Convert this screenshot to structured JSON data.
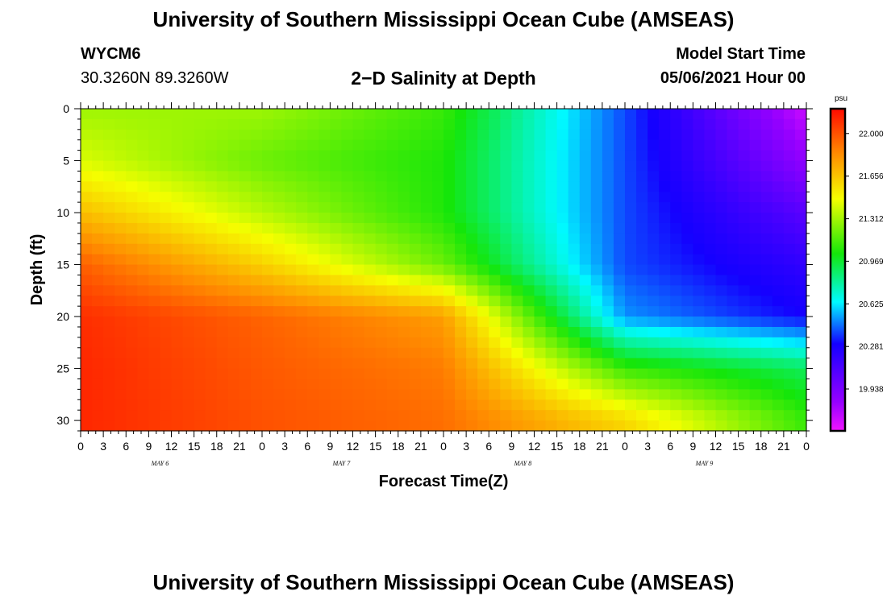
{
  "header": {
    "title": "University of Southern Mississippi Ocean Cube (AMSEAS)",
    "station_id": "WYCM6",
    "station_coords": "30.3260N  89.3260W",
    "plot_title": "2−D Salinity at Depth",
    "model_start_label": "Model Start Time",
    "model_start_value": "05/06/2021 Hour 00"
  },
  "footer": {
    "title": "University of Southern Mississippi Ocean Cube (AMSEAS)"
  },
  "chart_data": {
    "type": "heatmap",
    "title": "2−D Salinity at Depth",
    "xlabel": "Forecast Time(Z)",
    "ylabel": "Depth (ft)",
    "x_hours": [
      0,
      96
    ],
    "ylim": [
      0,
      31
    ],
    "y_ticks": [
      0,
      5,
      10,
      15,
      20,
      25,
      30
    ],
    "x_tick_labels": [
      "0",
      "3",
      "6",
      "9",
      "12",
      "15",
      "18",
      "21",
      "0",
      "3",
      "6",
      "9",
      "12",
      "15",
      "18",
      "21",
      "0",
      "3",
      "6",
      "9",
      "12",
      "15",
      "18",
      "21",
      "0",
      "3",
      "6",
      "9",
      "12",
      "15",
      "18",
      "21",
      "0"
    ],
    "date_labels": [
      "MAY  6",
      "MAY  7",
      "MAY  8",
      "MAY  9"
    ],
    "colorbar": {
      "unit": "psu",
      "range": [
        19.6,
        22.2
      ],
      "tick_values": [
        22.0,
        21.656,
        21.312,
        20.969,
        20.625,
        20.281,
        19.938
      ],
      "tick_labels": [
        "22.000",
        "21.656",
        "21.312",
        "20.969",
        "20.625",
        "20.281",
        "19.938"
      ]
    },
    "depth_levels_ft": [
      0,
      5,
      10,
      15,
      20,
      25,
      30
    ],
    "salinity_psu_approx": {
      "hour_0": [
        21.3,
        21.42,
        21.68,
        21.96,
        22.1,
        22.12,
        22.12
      ],
      "hour_24": [
        21.3,
        21.2,
        21.35,
        21.62,
        21.95,
        21.98,
        22.0
      ],
      "hour_48": [
        21.1,
        21.05,
        21.05,
        21.2,
        21.78,
        21.88,
        21.92
      ],
      "hour_72": [
        20.4,
        20.4,
        20.4,
        20.4,
        20.5,
        21.1,
        21.6
      ],
      "hour_96": [
        19.7,
        19.85,
        20.05,
        20.2,
        20.3,
        20.9,
        21.1
      ]
    }
  }
}
